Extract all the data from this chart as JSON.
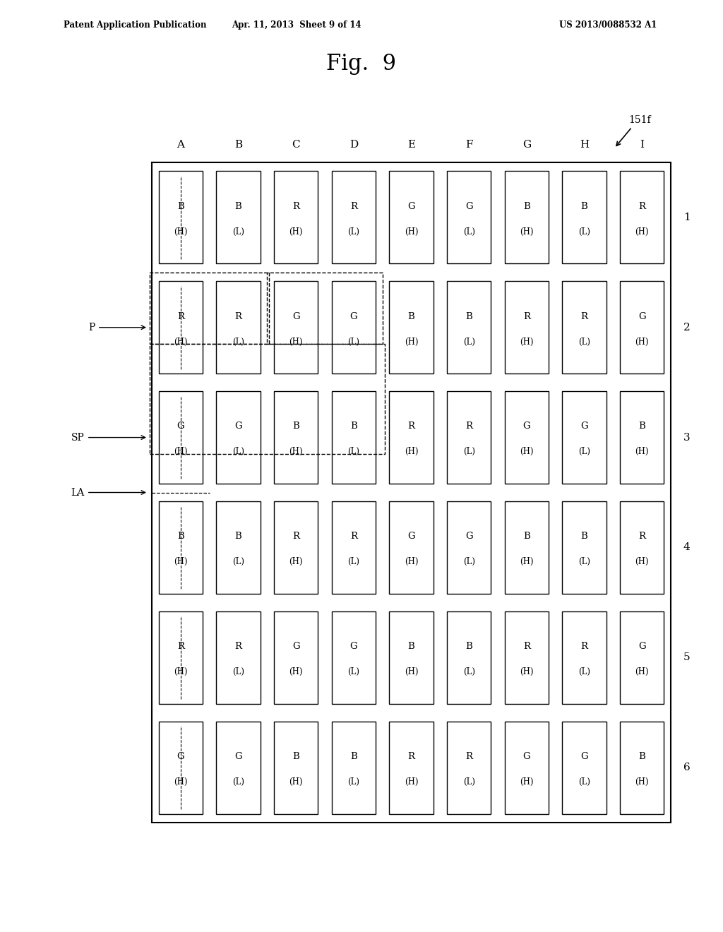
{
  "title": "Fig.  9",
  "patent_left": "Patent Application Publication",
  "patent_mid": "Apr. 11, 2013  Sheet 9 of 14",
  "patent_right": "US 2013/0088532 A1",
  "fig_label": "151f",
  "col_labels": [
    "A",
    "B",
    "C",
    "D",
    "E",
    "F",
    "G",
    "H",
    "I"
  ],
  "row_labels": [
    "1",
    "2",
    "3",
    "4",
    "5",
    "6"
  ],
  "grid": [
    [
      [
        "B",
        "H"
      ],
      [
        "B",
        "L"
      ],
      [
        "R",
        "H"
      ],
      [
        "R",
        "L"
      ],
      [
        "G",
        "H"
      ],
      [
        "G",
        "L"
      ],
      [
        "B",
        "H"
      ],
      [
        "B",
        "L"
      ],
      [
        "R",
        "H"
      ]
    ],
    [
      [
        "R",
        "H"
      ],
      [
        "R",
        "L"
      ],
      [
        "G",
        "H"
      ],
      [
        "G",
        "L"
      ],
      [
        "B",
        "H"
      ],
      [
        "B",
        "L"
      ],
      [
        "R",
        "H"
      ],
      [
        "R",
        "L"
      ],
      [
        "G",
        "H"
      ]
    ],
    [
      [
        "G",
        "H"
      ],
      [
        "G",
        "L"
      ],
      [
        "B",
        "H"
      ],
      [
        "B",
        "L"
      ],
      [
        "R",
        "H"
      ],
      [
        "R",
        "L"
      ],
      [
        "G",
        "H"
      ],
      [
        "G",
        "L"
      ],
      [
        "B",
        "H"
      ]
    ],
    [
      [
        "B",
        "H"
      ],
      [
        "B",
        "L"
      ],
      [
        "R",
        "H"
      ],
      [
        "R",
        "L"
      ],
      [
        "G",
        "H"
      ],
      [
        "G",
        "L"
      ],
      [
        "B",
        "H"
      ],
      [
        "B",
        "L"
      ],
      [
        "R",
        "H"
      ]
    ],
    [
      [
        "R",
        "H"
      ],
      [
        "R",
        "L"
      ],
      [
        "G",
        "H"
      ],
      [
        "G",
        "L"
      ],
      [
        "B",
        "H"
      ],
      [
        "B",
        "L"
      ],
      [
        "R",
        "H"
      ],
      [
        "R",
        "L"
      ],
      [
        "G",
        "H"
      ]
    ],
    [
      [
        "G",
        "H"
      ],
      [
        "G",
        "L"
      ],
      [
        "B",
        "H"
      ],
      [
        "B",
        "L"
      ],
      [
        "R",
        "H"
      ],
      [
        "R",
        "L"
      ],
      [
        "G",
        "H"
      ],
      [
        "G",
        "L"
      ],
      [
        "B",
        "H"
      ]
    ]
  ],
  "bg_color": "#ffffff",
  "cell_color": "#ffffff",
  "cell_border": "#000000",
  "text_color": "#000000",
  "outer_border": "#000000"
}
